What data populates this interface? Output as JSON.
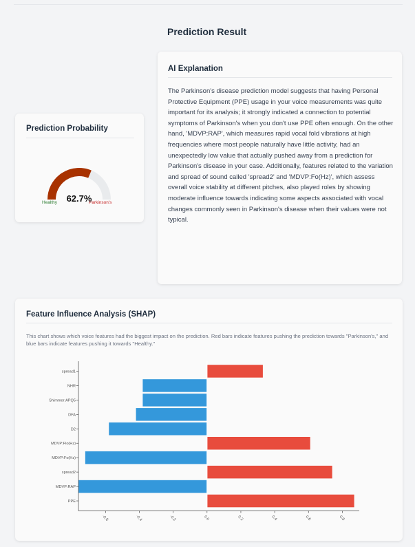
{
  "page": {
    "title": "Prediction Result"
  },
  "probability_card": {
    "title": "Prediction Probability",
    "value_text": "62.7%",
    "value": 0.627,
    "left_label": "Healthy",
    "right_label": "Parkinson's",
    "colors": {
      "fill": "#a83200",
      "track": "#e9ebed",
      "healthy": "#2e7d32",
      "parkinsons": "#c62828"
    }
  },
  "explanation_card": {
    "title": "AI Explanation",
    "text": "The Parkinson's disease prediction model suggests that having Personal Protective Equipment (PPE) usage in your voice measurements was quite important for its analysis; it strongly indicated a connection to potential symptoms of Parkinson's when you don't use PPE often enough. On the other hand, 'MDVP:RAP', which measures rapid vocal fold vibrations at high frequencies where most people naturally have little activity, had an unexpectedly low value that actually pushed away from a prediction for Parkinson's disease in your case. Additionally, features related to the variation and spread of sound called 'spread2' and 'MDVP:Fo(Hz)', which assess overall voice stability at different pitches, also played roles by showing moderate influence towards indicating some aspects associated with vocal changes commonly seen in Parkinson's disease when their values were not typical."
  },
  "shap_card": {
    "title": "Feature Influence Analysis (SHAP)",
    "description": "This chart shows which voice features had the biggest impact on the prediction. Red bars indicate features pushing the prediction towards \"Parkinson's,\" and blue bars indicate features pushing it towards \"Healthy.\""
  },
  "chart_data": {
    "type": "bar",
    "orientation": "horizontal",
    "categories": [
      "spread1",
      "NHR",
      "Shimmer:APQ5",
      "DFA",
      "D2",
      "MDVP:Flo(Hz)",
      "MDVP:Fo(Hz)",
      "spread2",
      "MDVP:RAP",
      "PPE"
    ],
    "values": [
      0.33,
      -0.38,
      -0.38,
      -0.42,
      -0.58,
      0.61,
      -0.72,
      0.74,
      -0.76,
      0.87
    ],
    "xticks": [
      -0.6,
      -0.4,
      -0.2,
      0.0,
      0.2,
      0.4,
      0.6,
      0.8
    ],
    "xtick_labels": [
      "-0.6",
      "-0.4",
      "-0.2",
      "0.0",
      "0.2",
      "0.4",
      "0.6",
      "0.8"
    ],
    "xlim": [
      -0.76,
      0.9
    ],
    "colors": {
      "positive": "#e84c3d",
      "negative": "#3498db"
    },
    "title": "",
    "xlabel": "",
    "ylabel": ""
  }
}
